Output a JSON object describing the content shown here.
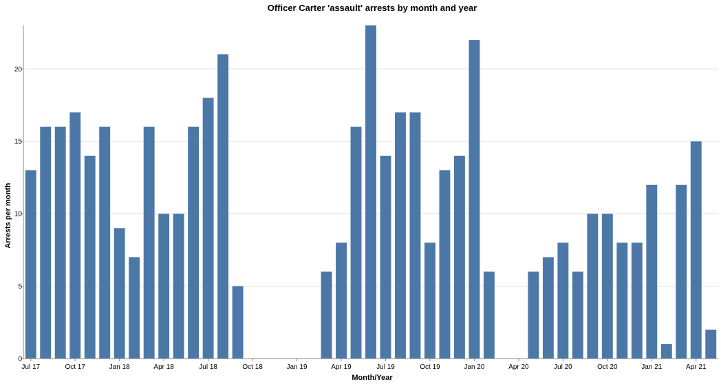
{
  "chart_data": {
    "type": "bar",
    "title": "Officer Carter 'assault' arrests by month and year",
    "xlabel": "Month/Year",
    "ylabel": "Arrests per month",
    "ylim": [
      0,
      23
    ],
    "yticks": [
      0,
      5,
      10,
      15,
      20
    ],
    "grid": true,
    "bar_color": "#4c78a8",
    "categories": [
      "2017-07",
      "2017-08",
      "2017-09",
      "2017-10",
      "2017-11",
      "2017-12",
      "2018-01",
      "2018-02",
      "2018-03",
      "2018-04",
      "2018-05",
      "2018-06",
      "2018-07",
      "2018-08",
      "2018-09",
      "2018-10",
      "2018-11",
      "2018-12",
      "2019-01",
      "2019-02",
      "2019-03",
      "2019-04",
      "2019-05",
      "2019-06",
      "2019-07",
      "2019-08",
      "2019-09",
      "2019-10",
      "2019-11",
      "2019-12",
      "2020-01",
      "2020-02",
      "2020-03",
      "2020-04",
      "2020-05",
      "2020-06",
      "2020-07",
      "2020-08",
      "2020-09",
      "2020-10",
      "2020-11",
      "2020-12",
      "2021-01",
      "2021-02",
      "2021-03",
      "2021-04",
      "2021-05"
    ],
    "values": [
      13,
      16,
      16,
      17,
      14,
      16,
      9,
      7,
      16,
      10,
      10,
      16,
      18,
      21,
      5,
      0,
      0,
      0,
      0,
      0,
      6,
      8,
      16,
      23,
      14,
      17,
      17,
      8,
      13,
      14,
      22,
      6,
      0,
      0,
      6,
      7,
      8,
      6,
      10,
      10,
      8,
      8,
      12,
      1,
      12,
      15,
      2
    ],
    "xticks": [
      {
        "category": "2017-07",
        "label": "Jul 17"
      },
      {
        "category": "2017-10",
        "label": "Oct 17"
      },
      {
        "category": "2018-01",
        "label": "Jan 18"
      },
      {
        "category": "2018-04",
        "label": "Apr 18"
      },
      {
        "category": "2018-07",
        "label": "Jul 18"
      },
      {
        "category": "2018-10",
        "label": "Oct 18"
      },
      {
        "category": "2019-01",
        "label": "Jan 19"
      },
      {
        "category": "2019-04",
        "label": "Apr 19"
      },
      {
        "category": "2019-07",
        "label": "Jul 19"
      },
      {
        "category": "2019-10",
        "label": "Oct 19"
      },
      {
        "category": "2020-01",
        "label": "Jan 20"
      },
      {
        "category": "2020-04",
        "label": "Apr 20"
      },
      {
        "category": "2020-07",
        "label": "Jul 20"
      },
      {
        "category": "2020-10",
        "label": "Oct 20"
      },
      {
        "category": "2021-01",
        "label": "Jan 21"
      },
      {
        "category": "2021-04",
        "label": "Apr 21"
      }
    ]
  }
}
